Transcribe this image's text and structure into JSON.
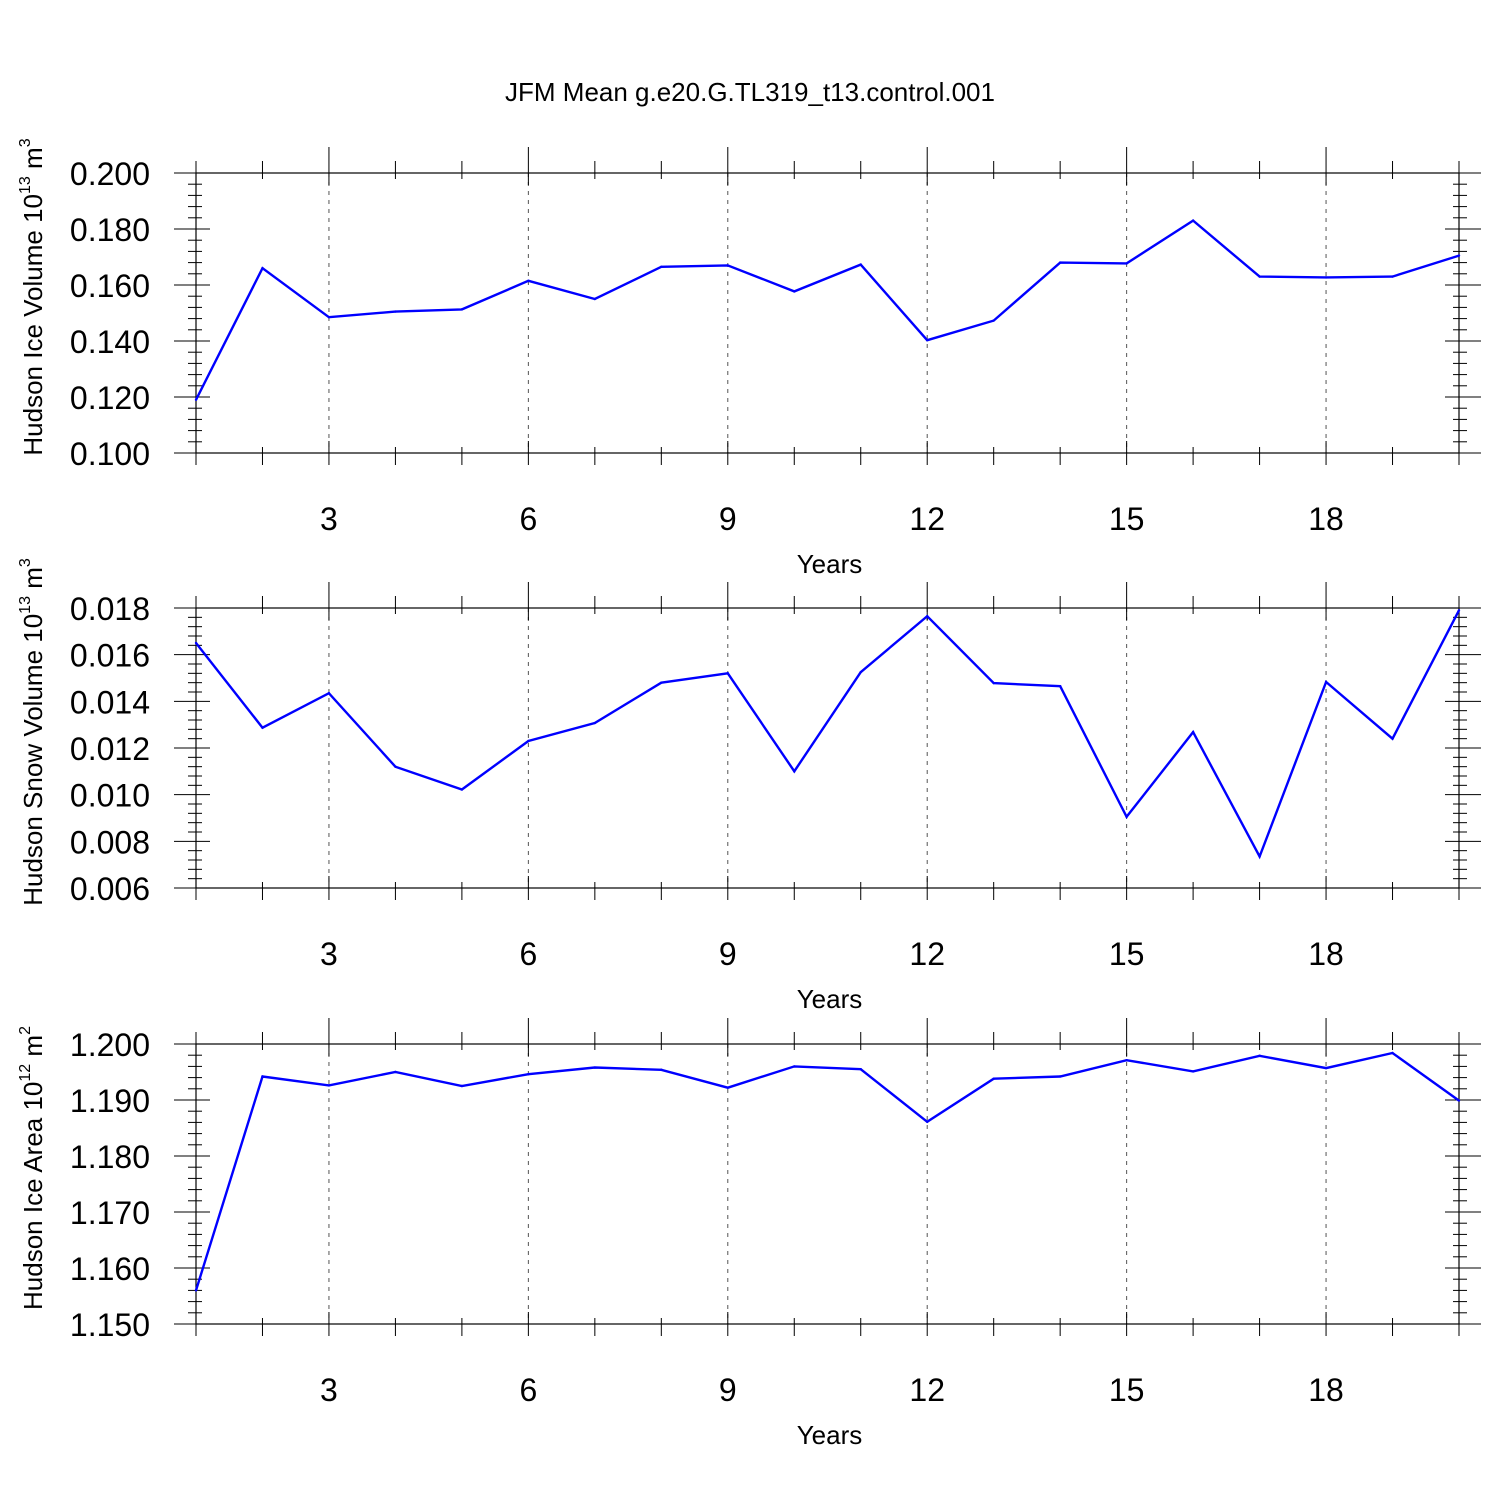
{
  "chart_data": {
    "type": "line",
    "title": "JFM Mean g.e20.G.TL319_t13.control.001",
    "xlabel": "Years",
    "xlim": [
      1,
      20
    ],
    "xticks": [
      3,
      6,
      9,
      12,
      15,
      18
    ],
    "x": [
      1,
      2,
      3,
      4,
      5,
      6,
      7,
      8,
      9,
      10,
      11,
      12,
      13,
      14,
      15,
      16,
      17,
      18,
      19,
      20
    ],
    "series_color": "#0000ff",
    "grid": "vertical dashed at major x ticks",
    "panels": [
      {
        "name": "ice-volume",
        "ylabel": {
          "prefix": "Hudson Ice Volume 10",
          "exp": "13",
          "unit": " m",
          "unit_exp": "3"
        },
        "ylim": [
          0.1,
          0.2
        ],
        "yticks": [
          0.1,
          0.12,
          0.14,
          0.16,
          0.18,
          0.2
        ],
        "ytick_labels": [
          "0.100",
          "0.120",
          "0.140",
          "0.160",
          "0.180",
          "0.200"
        ],
        "values": [
          0.119,
          0.166,
          0.1485,
          0.1505,
          0.1513,
          0.1615,
          0.155,
          0.1665,
          0.167,
          0.1577,
          0.1673,
          0.1403,
          0.1473,
          0.168,
          0.1677,
          0.183,
          0.163,
          0.1627,
          0.163,
          0.1705
        ]
      },
      {
        "name": "snow-volume",
        "ylabel": {
          "prefix": "Hudson Snow Volume 10",
          "exp": "13",
          "unit": " m",
          "unit_exp": "3"
        },
        "ylim": [
          0.006,
          0.018
        ],
        "yticks": [
          0.006,
          0.008,
          0.01,
          0.012,
          0.014,
          0.016,
          0.018
        ],
        "ytick_labels": [
          "0.006",
          "0.008",
          "0.010",
          "0.012",
          "0.014",
          "0.016",
          "0.018"
        ],
        "values": [
          0.0165,
          0.01287,
          0.01435,
          0.0112,
          0.01022,
          0.0123,
          0.01307,
          0.0148,
          0.0152,
          0.011,
          0.01525,
          0.01765,
          0.01478,
          0.01465,
          0.00905,
          0.01268,
          0.00735,
          0.01483,
          0.0124,
          0.0179
        ]
      },
      {
        "name": "ice-area",
        "ylabel": {
          "prefix": "Hudson Ice Area 10",
          "exp": "12",
          "unit": " m",
          "unit_exp": "2"
        },
        "ylim": [
          1.15,
          1.2
        ],
        "yticks": [
          1.15,
          1.16,
          1.17,
          1.18,
          1.19,
          1.2
        ],
        "ytick_labels": [
          "1.150",
          "1.160",
          "1.170",
          "1.180",
          "1.190",
          "1.200"
        ],
        "values": [
          1.156,
          1.1942,
          1.1926,
          1.195,
          1.1925,
          1.1946,
          1.1958,
          1.1954,
          1.1922,
          1.196,
          1.1955,
          1.1861,
          1.1938,
          1.1942,
          1.1971,
          1.1951,
          1.1979,
          1.1957,
          1.1984,
          1.1899
        ]
      }
    ]
  }
}
